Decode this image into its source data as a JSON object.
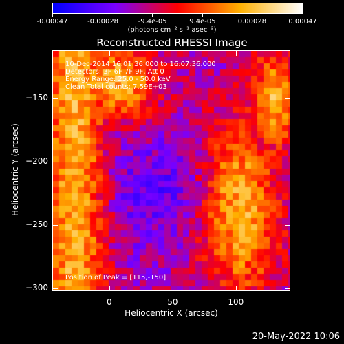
{
  "colorbar": {
    "tick_labels": [
      "-0.00047",
      "-0.00028",
      "-9.4e-05",
      "9.4e-05",
      "0.00028",
      "0.00047"
    ],
    "tick_values": [
      -0.00047,
      -0.00028,
      -9.4e-05,
      9.4e-05,
      0.00028,
      0.00047
    ],
    "range": [
      -0.00047,
      0.00047
    ],
    "unit_text": "(photons cm⁻² s⁻¹ asec⁻²)",
    "colormap": [
      "#0000ff",
      "#7a00ff",
      "#ff0000",
      "#ffb000",
      "#ffffff"
    ]
  },
  "chart_data": {
    "type": "heatmap",
    "title": "Reconstructed RHESSI Image",
    "xlabel": "Heliocentric X (arcsec)",
    "ylabel": "Heliocentric Y (arcsec)",
    "xlim": [
      -45,
      143
    ],
    "ylim": [
      -302,
      -112
    ],
    "xticks": [
      0,
      50,
      100
    ],
    "xtick_labels": [
      "0",
      "50",
      "100"
    ],
    "yticks": [
      -150,
      -200,
      -250,
      -300
    ],
    "ytick_labels": [
      "−150",
      "−200",
      "−250",
      "−300"
    ],
    "grid": false,
    "annotations": [
      "10-Dec-2014 16:01:36.000 to 16:07:36.000",
      "Detectors: 3F 6F 7F 9F, Att 0",
      "Energy Range: 25.0 - 50.0 keV",
      "Clean    Total counts: 7.59E+03",
      "Position of Peak = [115,-150]"
    ],
    "peak": {
      "x": 115,
      "y": -150
    }
  },
  "footer": {
    "date": "20-May-2022 10:06"
  }
}
